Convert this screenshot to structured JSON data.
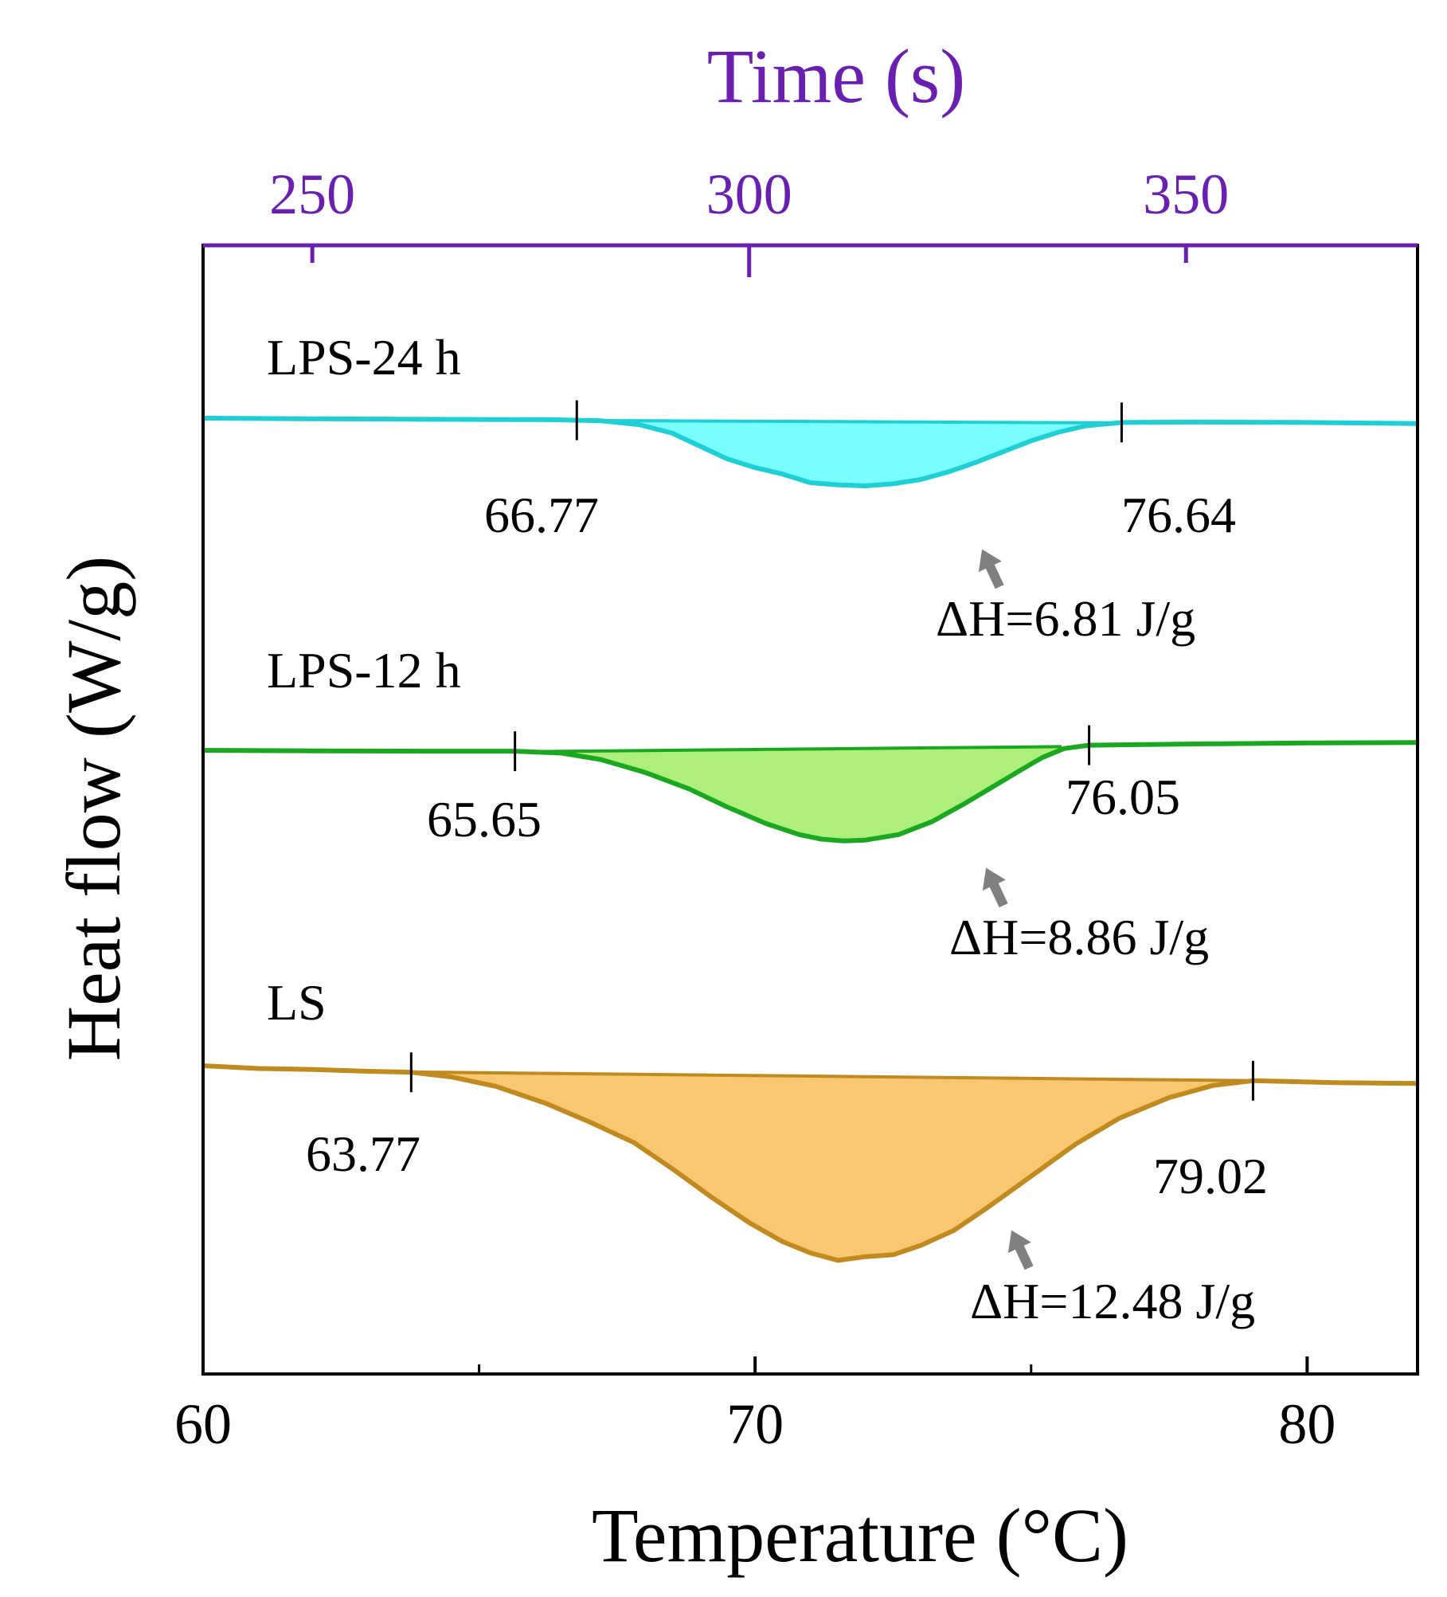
{
  "chart_data": {
    "type": "line",
    "title": "",
    "xlabel": "Temperature (°C)",
    "ylabel": "Heat flow (W/g)",
    "x_top_label": "Time (s)",
    "xlim": [
      60,
      82
    ],
    "x_ticks": [
      60,
      70,
      80
    ],
    "x_tick_labels": [
      "60",
      "70",
      "80"
    ],
    "x_top_ticks": [
      250,
      300,
      350
    ],
    "x_top_tick_labels": [
      "250",
      "300",
      "350"
    ],
    "x_top_lim": [
      237.5,
      376.5
    ],
    "grid": false,
    "legend": "none",
    "colors": {
      "top_axis": "#6a1fb0",
      "arrow": "#808080",
      "axis": "#000000"
    },
    "series": [
      {
        "name": "LPS-24 h",
        "line_color": "#1fcfd6",
        "fill_color": "#7cfdfd",
        "baseline_y": 0,
        "onset": 66.77,
        "onset_label": "66.77",
        "endset": 76.64,
        "endset_label": "76.64",
        "enthalpy_label": "ΔH=6.81 J/g",
        "points": [
          [
            60,
            0
          ],
          [
            62,
            -0.03
          ],
          [
            64,
            -0.05
          ],
          [
            66.3,
            -0.07
          ],
          [
            67.2,
            -0.12
          ],
          [
            67.9,
            -0.3
          ],
          [
            68.5,
            -0.7
          ],
          [
            69.0,
            -1.3
          ],
          [
            69.5,
            -1.9
          ],
          [
            70.0,
            -2.3
          ],
          [
            70.5,
            -2.6
          ],
          [
            71.0,
            -3.0
          ],
          [
            71.5,
            -3.1
          ],
          [
            72.0,
            -3.15
          ],
          [
            72.5,
            -3.05
          ],
          [
            73.0,
            -2.85
          ],
          [
            73.5,
            -2.5
          ],
          [
            74.0,
            -2.05
          ],
          [
            74.5,
            -1.55
          ],
          [
            75.0,
            -1.05
          ],
          [
            75.5,
            -0.65
          ],
          [
            76.0,
            -0.35
          ],
          [
            76.64,
            -0.2
          ],
          [
            78,
            -0.18
          ],
          [
            80,
            -0.2
          ],
          [
            82,
            -0.25
          ]
        ],
        "baseline": [
          [
            67.1,
            -0.11
          ],
          [
            76.64,
            -0.22
          ]
        ]
      },
      {
        "name": "LPS-12 h",
        "line_color": "#1aa820",
        "fill_color": "#aeee7a",
        "baseline_y": 0,
        "onset": 65.65,
        "onset_label": "65.65",
        "endset": 76.05,
        "endset_label": "76.05",
        "enthalpy_label": "ΔH=8.86 J/g",
        "points": [
          [
            60,
            0
          ],
          [
            62,
            -0.03
          ],
          [
            64,
            -0.05
          ],
          [
            65.65,
            -0.05
          ],
          [
            66.5,
            -0.15
          ],
          [
            67.2,
            -0.5
          ],
          [
            68.0,
            -1.2
          ],
          [
            68.8,
            -2.1
          ],
          [
            69.5,
            -3.1
          ],
          [
            70.2,
            -4.0
          ],
          [
            70.8,
            -4.6
          ],
          [
            71.2,
            -4.85
          ],
          [
            71.6,
            -4.95
          ],
          [
            72.0,
            -4.9
          ],
          [
            72.6,
            -4.6
          ],
          [
            73.2,
            -3.9
          ],
          [
            73.8,
            -2.9
          ],
          [
            74.3,
            -2.0
          ],
          [
            74.8,
            -1.1
          ],
          [
            75.2,
            -0.4
          ],
          [
            75.6,
            0.1
          ],
          [
            76.05,
            0.28
          ],
          [
            78,
            0.35
          ],
          [
            80,
            0.4
          ],
          [
            82,
            0.42
          ]
        ],
        "baseline": [
          [
            65.9,
            -0.07
          ],
          [
            75.55,
            0.2
          ]
        ]
      },
      {
        "name": "LS",
        "line_color": "#c08a1e",
        "fill_color": "#f8c870",
        "baseline_y": 0,
        "onset": 63.77,
        "onset_label": "63.77",
        "endset": 79.02,
        "endset_label": "79.02",
        "enthalpy_label": "ΔH=12.48 J/g",
        "points": [
          [
            60,
            0
          ],
          [
            61,
            -0.15
          ],
          [
            62,
            -0.2
          ],
          [
            63,
            -0.3
          ],
          [
            63.77,
            -0.35
          ],
          [
            64.5,
            -0.6
          ],
          [
            65.3,
            -1.1
          ],
          [
            66.2,
            -2.0
          ],
          [
            67.0,
            -3.0
          ],
          [
            67.8,
            -4.1
          ],
          [
            68.5,
            -5.5
          ],
          [
            69.2,
            -7.0
          ],
          [
            69.9,
            -8.4
          ],
          [
            70.5,
            -9.4
          ],
          [
            71.0,
            -10.0
          ],
          [
            71.5,
            -10.4
          ],
          [
            72.0,
            -10.2
          ],
          [
            72.5,
            -10.1
          ],
          [
            73.0,
            -9.6
          ],
          [
            73.6,
            -8.8
          ],
          [
            74.2,
            -7.6
          ],
          [
            75.0,
            -5.9
          ],
          [
            75.8,
            -4.2
          ],
          [
            76.6,
            -2.8
          ],
          [
            77.5,
            -1.7
          ],
          [
            78.3,
            -1.05
          ],
          [
            79.02,
            -0.8
          ],
          [
            80.5,
            -0.9
          ],
          [
            82,
            -0.95
          ]
        ],
        "baseline": [
          [
            63.6,
            -0.33
          ],
          [
            79.02,
            -0.8
          ]
        ]
      }
    ]
  }
}
